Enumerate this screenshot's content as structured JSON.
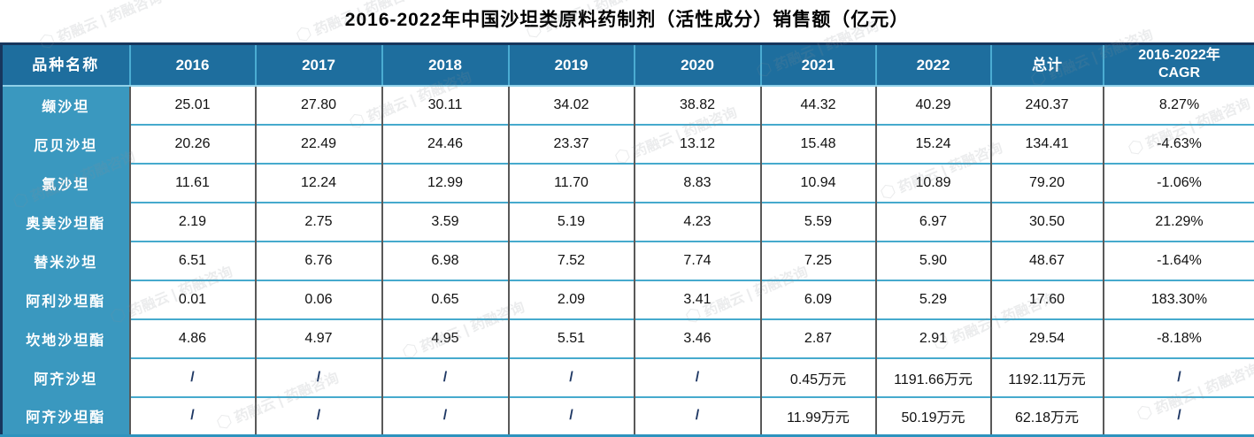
{
  "title": "2016-2022年中国沙坦类原料药制剂（活性成分）销售额（亿元）",
  "watermark": {
    "text": "药融云 | 药融咨询",
    "logo": "hexagon-icon"
  },
  "chart_data": {
    "type": "table",
    "title": "2016-2022年中国沙坦类原料药制剂（活性成分）销售额（亿元）",
    "unit": "亿元",
    "columns": [
      "品种名称",
      "2016",
      "2017",
      "2018",
      "2019",
      "2020",
      "2021",
      "2022",
      "总计",
      "2016-2022年\nCAGR"
    ],
    "rows": [
      {
        "name": "缬沙坦",
        "values": [
          "25.01",
          "27.80",
          "30.11",
          "34.02",
          "38.82",
          "44.32",
          "40.29",
          "240.37",
          "8.27%"
        ]
      },
      {
        "name": "厄贝沙坦",
        "values": [
          "20.26",
          "22.49",
          "24.46",
          "23.37",
          "13.12",
          "15.48",
          "15.24",
          "134.41",
          "-4.63%"
        ]
      },
      {
        "name": "氯沙坦",
        "values": [
          "11.61",
          "12.24",
          "12.99",
          "11.70",
          "8.83",
          "10.94",
          "10.89",
          "79.20",
          "-1.06%"
        ]
      },
      {
        "name": "奥美沙坦酯",
        "values": [
          "2.19",
          "2.75",
          "3.59",
          "5.19",
          "4.23",
          "5.59",
          "6.97",
          "30.50",
          "21.29%"
        ]
      },
      {
        "name": "替米沙坦",
        "values": [
          "6.51",
          "6.76",
          "6.98",
          "7.52",
          "7.74",
          "7.25",
          "5.90",
          "48.67",
          "-1.64%"
        ]
      },
      {
        "name": "阿利沙坦酯",
        "values": [
          "0.01",
          "0.06",
          "0.65",
          "2.09",
          "3.41",
          "6.09",
          "5.29",
          "17.60",
          "183.30%"
        ]
      },
      {
        "name": "坎地沙坦酯",
        "values": [
          "4.86",
          "4.97",
          "4.95",
          "5.51",
          "3.46",
          "2.87",
          "2.91",
          "29.54",
          "-8.18%"
        ]
      },
      {
        "name": "阿齐沙坦",
        "values": [
          "/",
          "/",
          "/",
          "/",
          "/",
          "0.45万元",
          "1191.66万元",
          "1192.11万元",
          "/"
        ]
      },
      {
        "name": "阿齐沙坦酯",
        "values": [
          "/",
          "/",
          "/",
          "/",
          "/",
          "11.99万元",
          "50.19万元",
          "62.18万元",
          "/"
        ]
      }
    ]
  }
}
